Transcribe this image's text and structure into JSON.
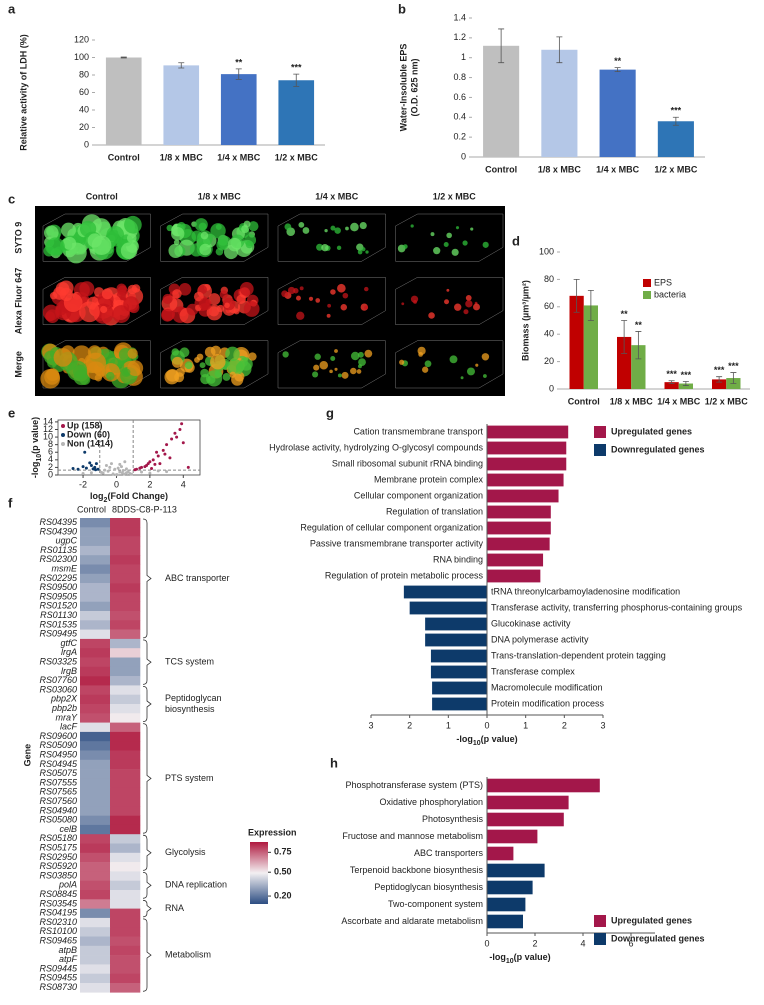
{
  "chart_data": [
    {
      "panel": "a",
      "type": "bar",
      "categories": [
        "Control",
        "1/8 x MBC",
        "1/4 x MBC",
        "1/2 x MBC"
      ],
      "values": [
        100,
        91,
        81,
        74
      ],
      "errors": [
        0.5,
        3,
        6,
        7
      ],
      "colors": [
        "#bfbfbf",
        "#b4c7e7",
        "#4472c4",
        "#2e75b6"
      ],
      "ylabel": "Relative activity of LDH (%)",
      "ylim": [
        0,
        120
      ],
      "yticks": [
        0,
        20,
        40,
        60,
        80,
        100,
        120
      ],
      "annotations": [
        {
          "index": 2,
          "text": "**"
        },
        {
          "index": 3,
          "text": "***"
        }
      ],
      "annotation_color": "#e8262a"
    },
    {
      "panel": "b",
      "type": "bar",
      "categories": [
        "Control",
        "1/8 x MBC",
        "1/4 x MBC",
        "1/2 x MBC"
      ],
      "values": [
        1.12,
        1.08,
        0.88,
        0.36
      ],
      "errors": [
        0.17,
        0.13,
        0.02,
        0.04
      ],
      "colors": [
        "#bfbfbf",
        "#b4c7e7",
        "#4472c4",
        "#2e75b6"
      ],
      "ylabel": [
        "Water-Insoluble EPS",
        "(O.D. 625 nm)"
      ],
      "ylim": [
        0,
        1.4
      ],
      "yticks": [
        0,
        0.2,
        0.4,
        0.6,
        0.8,
        1,
        1.2,
        1.4
      ],
      "annotations": [
        {
          "index": 2,
          "text": "**"
        },
        {
          "index": 3,
          "text": "***"
        }
      ],
      "annotation_color": "#e8262a"
    },
    {
      "panel": "d",
      "type": "grouped_bar",
      "categories": [
        "Control",
        "1/8 x MBC",
        "1/4 x MBC",
        "1/2 x MBC"
      ],
      "series": [
        {
          "name": "EPS",
          "color": "#c00000",
          "values": [
            68,
            38,
            5,
            7
          ],
          "errors": [
            12,
            12,
            1,
            2
          ]
        },
        {
          "name": "bacteria",
          "color": "#70ad47",
          "values": [
            61,
            32,
            4,
            8
          ],
          "errors": [
            11,
            10,
            1.5,
            4
          ]
        }
      ],
      "ylabel": "Biomass (µm³/µm²)",
      "ylim": [
        0,
        100
      ],
      "yticks": [
        0,
        20,
        40,
        60,
        80,
        100
      ],
      "annotations": [
        {
          "series": 0,
          "index": 1,
          "text": "**"
        },
        {
          "series": 1,
          "index": 1,
          "text": "**"
        },
        {
          "series": 0,
          "index": 2,
          "text": "***"
        },
        {
          "series": 1,
          "index": 2,
          "text": "***"
        },
        {
          "series": 0,
          "index": 3,
          "text": "***"
        },
        {
          "series": 1,
          "index": 3,
          "text": "***"
        }
      ]
    },
    {
      "panel": "e",
      "type": "scatter",
      "series": [
        {
          "name": "Up (158)",
          "color": "#a3174a",
          "x": [
            1.2,
            1.5,
            1.8,
            2.0,
            2.2,
            2.5,
            2.8,
            3.0,
            3.3,
            3.5,
            3.8,
            4.0,
            2.6,
            3.2,
            1.4,
            1.7,
            2.3,
            2.9,
            3.6,
            1.1,
            1.9,
            2.1,
            4.3,
            3.9,
            2.4
          ],
          "y": [
            1.5,
            2.0,
            2.5,
            3.5,
            4.0,
            5.0,
            6.5,
            8.0,
            9.5,
            11,
            12,
            8.5,
            3.0,
            4.5,
            1.8,
            2.2,
            2.8,
            5.5,
            10,
            1.4,
            3.0,
            1.7,
            2.0,
            13.5,
            6.0
          ]
        },
        {
          "name": "Down (60)",
          "color": "#0d3a6a",
          "x": [
            -1.1,
            -1.3,
            -1.5,
            -1.2,
            -1.8,
            -2.0,
            -1.4,
            -1.6,
            -2.3,
            -1.9,
            -2.6,
            -1.25
          ],
          "y": [
            1.5,
            2.0,
            2.5,
            3.0,
            1.8,
            2.2,
            1.6,
            3.2,
            1.5,
            6.0,
            1.7,
            1.4
          ]
        },
        {
          "name": "Non (1414)",
          "color": "#b5b5b5",
          "x": [
            -0.8,
            -0.5,
            -0.2,
            0,
            0.2,
            0.4,
            0.6,
            0.8,
            -0.6,
            -0.3,
            0.1,
            0.3,
            0.5,
            0.7,
            0.9,
            -0.9,
            -0.4,
            0.05,
            -0.1,
            0.35,
            1.5,
            2.0,
            -1.5,
            3.0,
            2.5,
            -2.0,
            0.6,
            0.2,
            -0.7,
            0.45
          ],
          "y": [
            0.5,
            1.0,
            0.3,
            0.1,
            0.8,
            1.2,
            0.6,
            0.4,
            2.5,
            3.0,
            1.8,
            2.2,
            3.5,
            0.9,
            0.2,
            0.7,
            2.0,
            0.05,
            1.5,
            0.6,
            0.8,
            0.5,
            0.6,
            0.9,
            1.1,
            0.4,
            1.6,
            2.8,
            1.3,
            0.25
          ]
        }
      ],
      "xlabel": [
        "log",
        "2",
        "(Fold Change)"
      ],
      "ylabel": [
        "-log",
        "10",
        "(p value)"
      ],
      "xlim": [
        -3.5,
        5
      ],
      "xticks": [
        -2,
        0,
        2,
        4
      ],
      "ylim": [
        0,
        14.5
      ],
      "yticks": [
        0,
        2,
        4,
        6,
        8,
        10,
        12,
        14
      ],
      "thresholds": {
        "x": [
          -1,
          1
        ],
        "y": 1.3
      }
    },
    {
      "panel": "f",
      "type": "heatmap",
      "columns": [
        "Control",
        "8DDS-C8-P-113"
      ],
      "rows": [
        "RS04395",
        "RS04390",
        "ugpC",
        "RS01135",
        "RS02300",
        "msmE",
        "RS02295",
        "RS09500",
        "RS09505",
        "RS01520",
        "RS01130",
        "RS01535",
        "RS09495",
        "gtfC",
        "lrgA",
        "RS03325",
        "lrgB",
        "RS07760",
        "RS03060",
        "pbp2X",
        "pbp2b",
        "mraY",
        "lacF",
        "RS09600",
        "RS05090",
        "RS04950",
        "RS04945",
        "RS05075",
        "RS07555",
        "RS07565",
        "RS07560",
        "RS04940",
        "RS05080",
        "celB",
        "RS05180",
        "RS05175",
        "RS02950",
        "RS05920",
        "RS03850",
        "polA",
        "RS08845",
        "RS03545",
        "RS04195",
        "RS02310",
        "RS10100",
        "RS09465",
        "atpB",
        "atpF",
        "RS09445",
        "RS09455",
        "RS08730"
      ],
      "values": [
        [
          0.25,
          0.82
        ],
        [
          0.3,
          0.82
        ],
        [
          0.3,
          0.8
        ],
        [
          0.35,
          0.8
        ],
        [
          0.3,
          0.82
        ],
        [
          0.25,
          0.8
        ],
        [
          0.3,
          0.8
        ],
        [
          0.35,
          0.82
        ],
        [
          0.35,
          0.8
        ],
        [
          0.3,
          0.8
        ],
        [
          0.4,
          0.78
        ],
        [
          0.35,
          0.8
        ],
        [
          0.45,
          0.75
        ],
        [
          0.8,
          0.35
        ],
        [
          0.82,
          0.55
        ],
        [
          0.8,
          0.3
        ],
        [
          0.82,
          0.3
        ],
        [
          0.85,
          0.35
        ],
        [
          0.8,
          0.45
        ],
        [
          0.82,
          0.4
        ],
        [
          0.8,
          0.45
        ],
        [
          0.78,
          0.5
        ],
        [
          0.45,
          0.75
        ],
        [
          0.15,
          0.85
        ],
        [
          0.2,
          0.85
        ],
        [
          0.25,
          0.82
        ],
        [
          0.3,
          0.82
        ],
        [
          0.3,
          0.8
        ],
        [
          0.3,
          0.8
        ],
        [
          0.3,
          0.8
        ],
        [
          0.3,
          0.8
        ],
        [
          0.3,
          0.8
        ],
        [
          0.25,
          0.85
        ],
        [
          0.2,
          0.85
        ],
        [
          0.8,
          0.4
        ],
        [
          0.82,
          0.35
        ],
        [
          0.78,
          0.45
        ],
        [
          0.75,
          0.5
        ],
        [
          0.75,
          0.45
        ],
        [
          0.78,
          0.4
        ],
        [
          0.8,
          0.45
        ],
        [
          0.7,
          0.45
        ],
        [
          0.25,
          0.8
        ],
        [
          0.45,
          0.8
        ],
        [
          0.4,
          0.8
        ],
        [
          0.35,
          0.78
        ],
        [
          0.4,
          0.8
        ],
        [
          0.4,
          0.78
        ],
        [
          0.45,
          0.78
        ],
        [
          0.4,
          0.8
        ],
        [
          0.45,
          0.75
        ]
      ],
      "groups": [
        {
          "label": [
            "ABC transporter"
          ],
          "start": 0,
          "end": 12
        },
        {
          "label": [
            "TCS system"
          ],
          "start": 13,
          "end": 17
        },
        {
          "label": [
            "Peptidoglycan",
            "biosynthesis"
          ],
          "start": 18,
          "end": 21
        },
        {
          "label": [
            "PTS system"
          ],
          "start": 22,
          "end": 33
        },
        {
          "label": [
            "Glycolysis"
          ],
          "start": 34,
          "end": 37
        },
        {
          "label": [
            "DNA replication"
          ],
          "start": 38,
          "end": 40
        },
        {
          "label": [
            "RNA"
          ],
          "start": 41,
          "end": 42
        },
        {
          "label": [
            "Metabolism"
          ],
          "start": 43,
          "end": 50
        }
      ],
      "ylabel": "Gene",
      "clim": [
        0.1,
        0.88
      ],
      "colormap": [
        "#2c4d82",
        "#f3f0f2",
        "#b0193f"
      ],
      "colorbar": {
        "title": "Expression",
        "ticks": [
          {
            "value": 0.2,
            "label": "0.20"
          },
          {
            "value": 0.5,
            "label": "0.50"
          },
          0.75
        ]
      }
    },
    {
      "panel": "g",
      "type": "barh",
      "series": [
        {
          "name": "Upregulated genes",
          "color": "#a3174a",
          "categories": [
            "Cation transmembrane transport",
            "Hydrolase activity, hydrolyzing O-glycosyl compounds",
            "Small ribosomal subunit rRNA binding",
            "Membrane protein complex",
            "Cellular component organization",
            "Regulation of translation",
            "Regulation of cellular component organization",
            "Passive transmembrane transporter activity",
            "RNA binding",
            "Regulation of protein metabolic process"
          ],
          "values": [
            2.1,
            2.05,
            2.05,
            1.98,
            1.85,
            1.65,
            1.65,
            1.62,
            1.45,
            1.38
          ]
        },
        {
          "name": "Downregulated genes",
          "color": "#0d3a6a",
          "categories": [
            "tRNA threonylcarbamoyladenosine modification",
            "Transferase activity, transferring phosphorus-containing groups",
            "Glucokinase activity",
            "DNA polymerase activity",
            "Trans-translation-dependent protein tagging",
            "Transferase complex",
            "Macromolecule modification",
            "Protein modification process"
          ],
          "values": [
            -2.15,
            -2.0,
            -1.6,
            -1.6,
            -1.45,
            -1.45,
            -1.42,
            -1.42
          ]
        }
      ],
      "xlim": [
        -3,
        3
      ],
      "xticks": [
        {
          "value": -3,
          "label": "3"
        },
        {
          "value": -2,
          "label": "2"
        },
        {
          "value": -1,
          "label": "1"
        },
        0,
        1,
        2,
        3
      ],
      "xlabel": [
        "-log",
        "10",
        "(p value)"
      ]
    },
    {
      "panel": "h",
      "type": "barh",
      "series": [
        {
          "name": "Upregulated genes",
          "color": "#a3174a",
          "categories": [
            "Phosphotransferase system (PTS)",
            "Oxidative phosphorylation",
            "Photosynthesis",
            "Fructose and mannose metabolism",
            "ABC transporters"
          ],
          "values": [
            4.7,
            3.4,
            3.2,
            2.1,
            1.1
          ]
        },
        {
          "name": "Downregulated genes",
          "color": "#0d3a6a",
          "categories": [
            "Terpenoid backbone biosynthesis",
            "Peptidoglycan biosynthesis",
            "Two-component system",
            "Ascorbate and aldarate metabolism"
          ],
          "values": [
            2.4,
            1.9,
            1.6,
            1.5
          ]
        }
      ],
      "xlim": [
        0,
        7
      ],
      "xticks": [
        0,
        2,
        4,
        6
      ],
      "xlabel": [
        "-log",
        "10",
        "(p value)"
      ]
    }
  ],
  "image_panel": {
    "panel": "c",
    "columns": [
      "Control",
      "1/8 x MBC",
      "1/4 x MBC",
      "1/2 x MBC"
    ],
    "rows": [
      "SYTO 9",
      "Alexa Fluor 647",
      "Merge"
    ]
  }
}
